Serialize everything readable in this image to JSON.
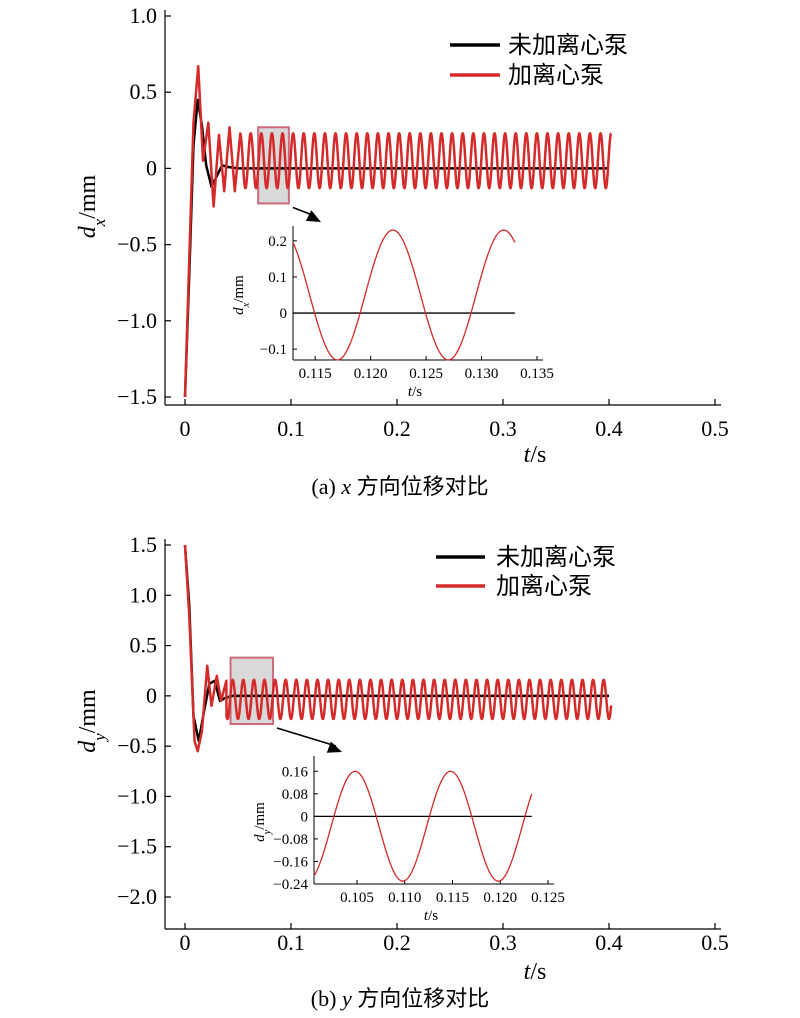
{
  "chart_data": [
    {
      "id": "a",
      "type": "line",
      "caption": {
        "label": "(a)",
        "var": "x",
        "text": "方向位移对比"
      },
      "xlabel": {
        "var": "t",
        "unit": "/s"
      },
      "ylabel": {
        "var": "d",
        "sub": "x",
        "unit": "/mm"
      },
      "xlim": [
        0,
        0.5
      ],
      "ylim": [
        -1.5,
        1.0
      ],
      "xticks": [
        0,
        0.1,
        0.2,
        0.3,
        0.4,
        0.5
      ],
      "xtick_labels": [
        "0",
        "0.1",
        "0.2",
        "0.3",
        "0.4",
        "0.5"
      ],
      "yticks": [
        1.0,
        0.5,
        0,
        -0.5,
        -1.0,
        -1.5
      ],
      "ytick_labels": [
        "1.0",
        "0.5",
        "0",
        "−0.5",
        "−1.0",
        "−1.5"
      ],
      "legend": {
        "position": "top-right",
        "items": [
          "未加离心泵",
          "加离心泵"
        ]
      },
      "series": [
        {
          "name": "未加离心泵",
          "color": "#000000",
          "x": [
            0,
            0.004,
            0.008,
            0.012,
            0.016,
            0.02,
            0.025,
            0.03,
            0.035,
            0.04,
            0.05,
            0.06,
            0.1,
            0.2,
            0.3,
            0.4
          ],
          "y": [
            -1.5,
            -0.7,
            0.15,
            0.45,
            0.28,
            0.02,
            -0.12,
            -0.05,
            0.02,
            0.01,
            0.0,
            0.0,
            0.0,
            0.0,
            0.0,
            0.0
          ]
        },
        {
          "name": "加离心泵",
          "color": "#d42a2a",
          "x": [
            0,
            0.004,
            0.008,
            0.0125,
            0.017,
            0.022,
            0.027,
            0.032,
            0.037,
            0.042,
            0.047,
            0.052
          ],
          "y": [
            -1.5,
            -0.6,
            0.3,
            0.67,
            0.05,
            0.3,
            -0.25,
            0.22,
            -0.15,
            0.27,
            -0.15,
            0.22
          ],
          "steady": {
            "start": 0.052,
            "end": 0.402,
            "period": 0.01,
            "max": 0.23,
            "min": -0.13,
            "mean": 0.05,
            "first_peak": 0.122
          }
        }
      ],
      "zoom_box": {
        "x": [
          0.069,
          0.098
        ],
        "y": [
          -0.23,
          0.27
        ]
      },
      "inset": {
        "xlim": [
          0.113,
          0.135
        ],
        "ylim": [
          -0.13,
          0.23
        ],
        "xticks": [
          0.115,
          0.12,
          0.125,
          0.13,
          0.135
        ],
        "xtick_labels": [
          "0.115",
          "0.120",
          "0.125",
          "0.130",
          "0.135"
        ],
        "yticks": [
          0.2,
          0.1,
          0,
          -0.1
        ],
        "ytick_labels": [
          "0.2",
          "0.1",
          "0",
          "−0.1"
        ],
        "xlabel": {
          "var": "t",
          "unit": "/s"
        },
        "ylabel": {
          "var": "d",
          "sub": "x",
          "unit": "/mm"
        },
        "curve": {
          "start": 0.113,
          "end": 0.133,
          "period": 0.01,
          "max": 0.23,
          "min": -0.13,
          "peak_at": 0.122
        },
        "zero_line": {
          "start": 0.113,
          "end": 0.133
        }
      }
    },
    {
      "id": "b",
      "type": "line",
      "caption": {
        "label": "(b)",
        "var": "y",
        "text": "方向位移对比"
      },
      "xlabel": {
        "var": "t",
        "unit": "/s"
      },
      "ylabel": {
        "var": "d",
        "sub": "y",
        "unit": "/mm"
      },
      "xlim": [
        0,
        0.5
      ],
      "ylim": [
        -2.0,
        1.5
      ],
      "xticks": [
        0,
        0.1,
        0.2,
        0.3,
        0.4,
        0.5
      ],
      "xtick_labels": [
        "0",
        "0.1",
        "0.2",
        "0.3",
        "0.4",
        "0.5"
      ],
      "yticks": [
        1.5,
        1.0,
        0.5,
        0,
        -0.5,
        -1.0,
        -1.5,
        -2.0
      ],
      "ytick_labels": [
        "1.5",
        "1.0",
        "0.5",
        "0",
        "−0.5",
        "−1.0",
        "−1.5",
        "−2.0"
      ],
      "legend": {
        "position": "top-right",
        "items": [
          "未加离心泵",
          "加离心泵"
        ]
      },
      "series": [
        {
          "name": "未加离心泵",
          "color": "#000000",
          "x": [
            0,
            0.004,
            0.008,
            0.013,
            0.018,
            0.023,
            0.028,
            0.033,
            0.038,
            0.045,
            0.06,
            0.1,
            0.2,
            0.3,
            0.4
          ],
          "y": [
            1.5,
            0.9,
            -0.2,
            -0.45,
            -0.15,
            0.12,
            0.15,
            -0.05,
            -0.02,
            0.0,
            0.0,
            0.0,
            0.0,
            0.0,
            0.0
          ]
        },
        {
          "name": "加离心泵",
          "color": "#d42a2a",
          "x": [
            0,
            0.004,
            0.009,
            0.012,
            0.016,
            0.021,
            0.025,
            0.03,
            0.034,
            0.039
          ],
          "y": [
            1.5,
            0.8,
            -0.45,
            -0.55,
            -0.35,
            0.3,
            -0.1,
            0.2,
            -0.05,
            0.15
          ],
          "steady": {
            "start": 0.039,
            "end": 0.402,
            "period": 0.01,
            "max": 0.16,
            "min": -0.23,
            "mean": -0.035,
            "first_peak": 0.105
          }
        }
      ],
      "zoom_box": {
        "x": [
          0.043,
          0.083
        ],
        "y": [
          -0.28,
          0.38
        ]
      },
      "inset": {
        "xlim": [
          0.1005,
          0.125
        ],
        "ylim": [
          -0.24,
          0.2
        ],
        "xticks": [
          0.105,
          0.11,
          0.115,
          0.12,
          0.125
        ],
        "xtick_labels": [
          "0.105",
          "0.110",
          "0.115",
          "0.120",
          "0.125"
        ],
        "yticks": [
          0.16,
          0.08,
          0,
          -0.08,
          -0.16,
          -0.24
        ],
        "ytick_labels": [
          "0.16",
          "0.08",
          "0",
          "−0.08",
          "−0.16",
          "−0.24"
        ],
        "xlabel": {
          "var": "t",
          "unit": "/s"
        },
        "ylabel": {
          "var": "d",
          "sub": "y",
          "unit": "/mm"
        },
        "curve": {
          "start": 0.1005,
          "end": 0.1233,
          "period": 0.01,
          "max": 0.16,
          "min": -0.23,
          "peak_at": 0.1048
        },
        "zero_line": {
          "start": 0.1005,
          "end": 0.1233
        }
      }
    }
  ]
}
